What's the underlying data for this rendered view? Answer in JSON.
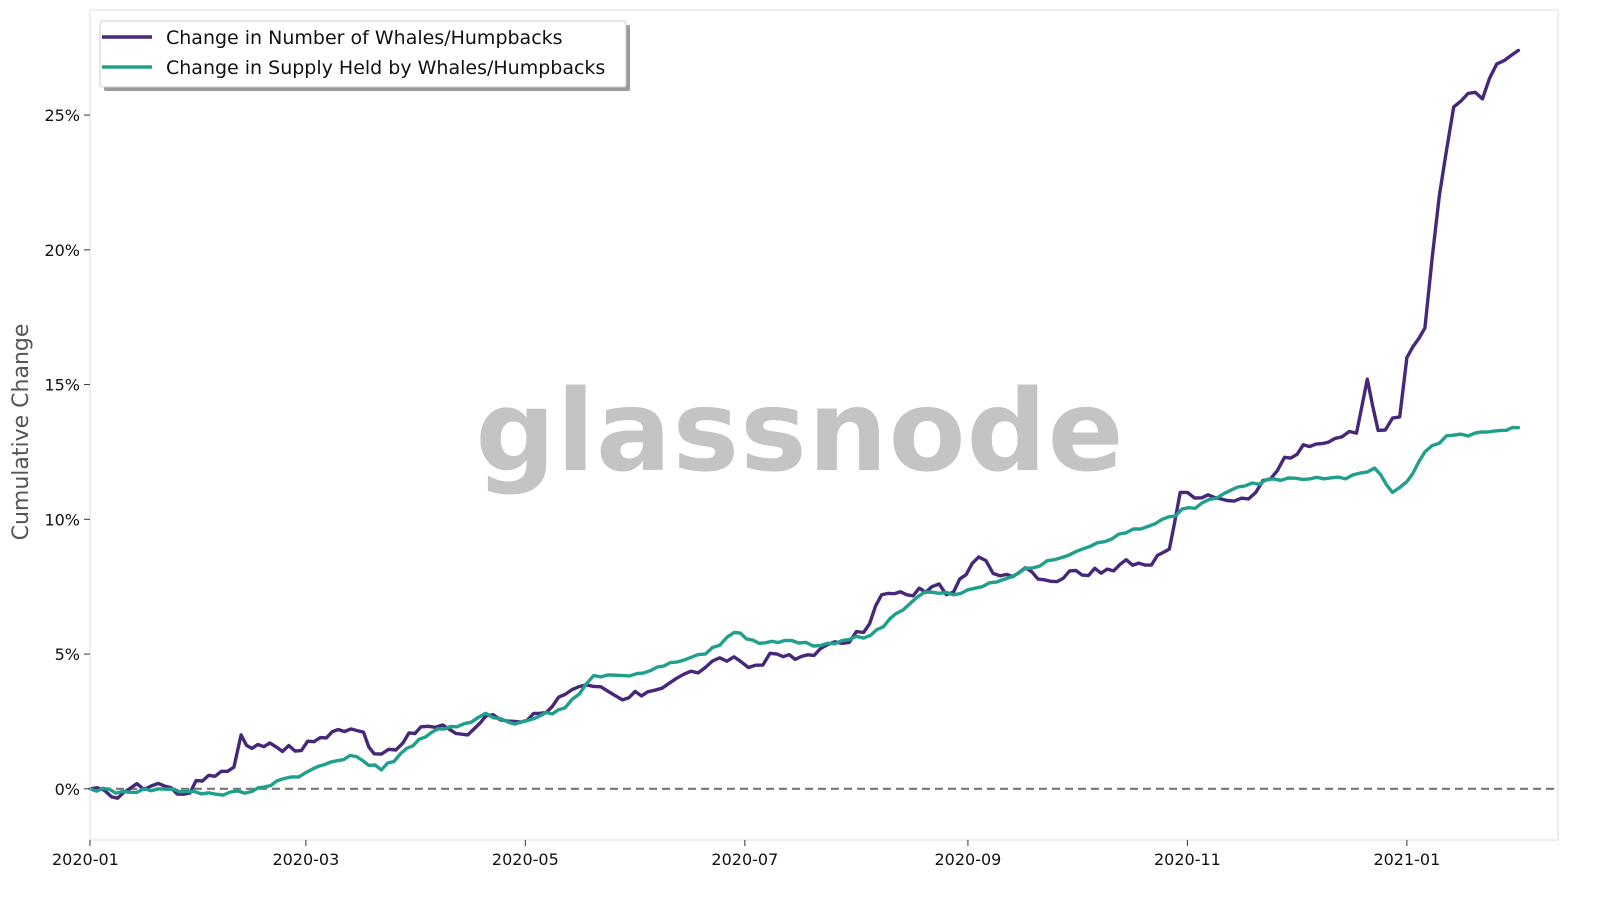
{
  "watermark": "glassnode",
  "chart_data": {
    "type": "line",
    "ylabel": "Cumulative Change",
    "xlabel": "",
    "title": "",
    "x_range": [
      "2020-01-01",
      "2021-02-12"
    ],
    "ylim": [
      -1.9,
      28.9
    ],
    "y_ticks": [
      {
        "value": 0,
        "label": "0%"
      },
      {
        "value": 5,
        "label": "5%"
      },
      {
        "value": 10,
        "label": "10%"
      },
      {
        "value": 15,
        "label": "15%"
      },
      {
        "value": 20,
        "label": "20%"
      },
      {
        "value": 25,
        "label": "25%"
      }
    ],
    "x_ticks": [
      {
        "date": "2020-01-01",
        "label": "2020-01"
      },
      {
        "date": "2020-03-01",
        "label": "2020-03"
      },
      {
        "date": "2020-05-01",
        "label": "2020-05"
      },
      {
        "date": "2020-07-01",
        "label": "2020-07"
      },
      {
        "date": "2020-09-01",
        "label": "2020-09"
      },
      {
        "date": "2020-11-01",
        "label": "2020-11"
      },
      {
        "date": "2021-01-01",
        "label": "2021-01"
      }
    ],
    "grid": false,
    "legend_position": "top-left",
    "reference_line": {
      "y": 0,
      "style": "dashed",
      "color": "#777777"
    },
    "series": [
      {
        "name": "Change in Number of Whales/Humpbacks",
        "color": "#45287a",
        "points": [
          [
            "2020-01-01",
            0.0
          ],
          [
            "2020-01-07",
            -0.3
          ],
          [
            "2020-01-12",
            0.0
          ],
          [
            "2020-01-20",
            0.2
          ],
          [
            "2020-01-27",
            -0.2
          ],
          [
            "2020-02-03",
            0.5
          ],
          [
            "2020-02-10",
            0.8
          ],
          [
            "2020-02-12",
            2.0
          ],
          [
            "2020-02-15",
            1.5
          ],
          [
            "2020-02-20",
            1.7
          ],
          [
            "2020-02-27",
            1.4
          ],
          [
            "2020-03-05",
            1.9
          ],
          [
            "2020-03-10",
            2.2
          ],
          [
            "2020-03-17",
            2.1
          ],
          [
            "2020-03-20",
            1.3
          ],
          [
            "2020-03-28",
            1.7
          ],
          [
            "2020-04-02",
            2.3
          ],
          [
            "2020-04-10",
            2.2
          ],
          [
            "2020-04-15",
            2.0
          ],
          [
            "2020-04-20",
            2.7
          ],
          [
            "2020-04-28",
            2.5
          ],
          [
            "2020-05-05",
            2.8
          ],
          [
            "2020-05-12",
            3.5
          ],
          [
            "2020-05-20",
            3.8
          ],
          [
            "2020-05-28",
            3.3
          ],
          [
            "2020-06-04",
            3.6
          ],
          [
            "2020-06-12",
            4.1
          ],
          [
            "2020-06-20",
            4.5
          ],
          [
            "2020-06-28",
            4.9
          ],
          [
            "2020-07-02",
            4.5
          ],
          [
            "2020-07-10",
            5.0
          ],
          [
            "2020-07-15",
            4.8
          ],
          [
            "2020-07-22",
            5.2
          ],
          [
            "2020-07-28",
            5.4
          ],
          [
            "2020-08-03",
            5.8
          ],
          [
            "2020-08-08",
            7.2
          ],
          [
            "2020-08-15",
            7.2
          ],
          [
            "2020-08-22",
            7.5
          ],
          [
            "2020-08-28",
            7.3
          ],
          [
            "2020-09-04",
            8.6
          ],
          [
            "2020-09-10",
            7.9
          ],
          [
            "2020-09-17",
            8.2
          ],
          [
            "2020-09-24",
            7.7
          ],
          [
            "2020-10-01",
            8.1
          ],
          [
            "2020-10-08",
            8.0
          ],
          [
            "2020-10-15",
            8.5
          ],
          [
            "2020-10-22",
            8.3
          ],
          [
            "2020-10-27",
            8.9
          ],
          [
            "2020-10-30",
            11.0
          ],
          [
            "2020-11-05",
            10.8
          ],
          [
            "2020-11-12",
            10.7
          ],
          [
            "2020-11-20",
            11.0
          ],
          [
            "2020-11-28",
            12.3
          ],
          [
            "2020-12-05",
            12.7
          ],
          [
            "2020-12-12",
            13.0
          ],
          [
            "2020-12-18",
            13.2
          ],
          [
            "2020-12-21",
            15.2
          ],
          [
            "2020-12-24",
            13.3
          ],
          [
            "2020-12-30",
            13.8
          ],
          [
            "2021-01-01",
            16.0
          ],
          [
            "2021-01-06",
            17.1
          ],
          [
            "2021-01-10",
            22.0
          ],
          [
            "2021-01-14",
            25.3
          ],
          [
            "2021-01-18",
            25.8
          ],
          [
            "2021-01-22",
            25.6
          ],
          [
            "2021-01-26",
            26.9
          ],
          [
            "2021-02-01",
            27.4
          ]
        ]
      },
      {
        "name": "Change in Supply Held by Whales/Humpbacks",
        "color": "#20a08c",
        "points": [
          [
            "2020-01-01",
            0.0
          ],
          [
            "2020-01-10",
            -0.1
          ],
          [
            "2020-01-20",
            0.0
          ],
          [
            "2020-01-30",
            -0.1
          ],
          [
            "2020-02-05",
            -0.2
          ],
          [
            "2020-02-15",
            -0.1
          ],
          [
            "2020-02-22",
            0.3
          ],
          [
            "2020-03-01",
            0.6
          ],
          [
            "2020-03-08",
            1.0
          ],
          [
            "2020-03-15",
            1.2
          ],
          [
            "2020-03-22",
            0.7
          ],
          [
            "2020-03-29",
            1.5
          ],
          [
            "2020-04-05",
            2.1
          ],
          [
            "2020-04-12",
            2.3
          ],
          [
            "2020-04-20",
            2.8
          ],
          [
            "2020-04-28",
            2.4
          ],
          [
            "2020-05-05",
            2.7
          ],
          [
            "2020-05-12",
            3.0
          ],
          [
            "2020-05-20",
            4.2
          ],
          [
            "2020-05-28",
            4.2
          ],
          [
            "2020-06-05",
            4.4
          ],
          [
            "2020-06-12",
            4.7
          ],
          [
            "2020-06-20",
            5.0
          ],
          [
            "2020-06-28",
            5.8
          ],
          [
            "2020-07-05",
            5.4
          ],
          [
            "2020-07-12",
            5.5
          ],
          [
            "2020-07-20",
            5.3
          ],
          [
            "2020-07-28",
            5.5
          ],
          [
            "2020-08-05",
            5.7
          ],
          [
            "2020-08-12",
            6.5
          ],
          [
            "2020-08-20",
            7.3
          ],
          [
            "2020-08-28",
            7.2
          ],
          [
            "2020-09-05",
            7.5
          ],
          [
            "2020-09-15",
            8.0
          ],
          [
            "2020-09-25",
            8.5
          ],
          [
            "2020-10-05",
            9.0
          ],
          [
            "2020-10-15",
            9.5
          ],
          [
            "2020-10-25",
            10.0
          ],
          [
            "2020-11-05",
            10.6
          ],
          [
            "2020-11-15",
            11.2
          ],
          [
            "2020-11-25",
            11.5
          ],
          [
            "2020-12-05",
            11.5
          ],
          [
            "2020-12-15",
            11.5
          ],
          [
            "2020-12-23",
            11.9
          ],
          [
            "2020-12-28",
            11.0
          ],
          [
            "2021-01-01",
            11.4
          ],
          [
            "2021-01-06",
            12.5
          ],
          [
            "2021-01-12",
            13.1
          ],
          [
            "2021-01-20",
            13.2
          ],
          [
            "2021-01-27",
            13.3
          ],
          [
            "2021-02-01",
            13.4
          ]
        ]
      }
    ]
  }
}
